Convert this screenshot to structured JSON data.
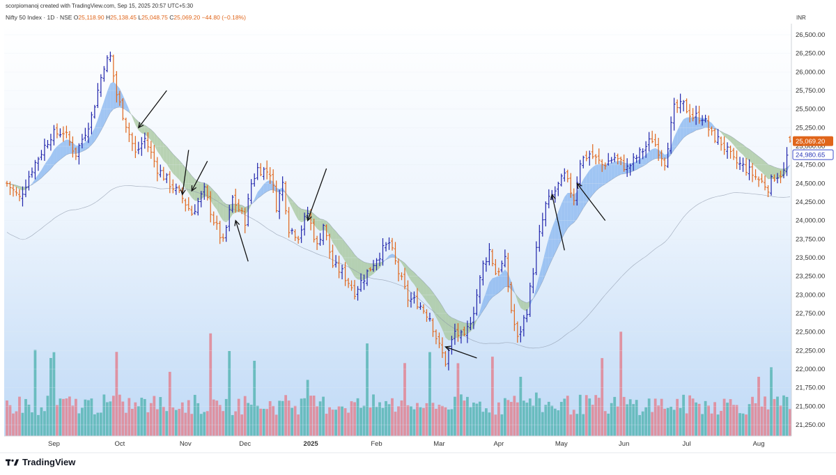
{
  "header": {
    "credit": "scorpiomanoj created with TradingView.com, Sep 15, 2025 20:57 UTC+5:30",
    "symbol": "Nifty 50 Index · 1D · NSE",
    "o_label": "O",
    "o_value": "25,118.90",
    "h_label": "H",
    "h_value": "25,138.45",
    "l_label": "L",
    "l_value": "25,048.75",
    "c_label": "C",
    "c_value": "25,069.20",
    "change": "−44.80 (−0.18%)"
  },
  "footer": {
    "brand": "TradingView"
  },
  "chart_data": {
    "type": "ohlc",
    "currency": "INR",
    "ylim": [
      21100,
      26650
    ],
    "y_ticks": [
      21250,
      21500,
      21750,
      22000,
      22250,
      22500,
      22750,
      23000,
      23250,
      23500,
      23750,
      24000,
      24250,
      24500,
      24750,
      25000,
      25250,
      25500,
      25750,
      26000,
      26250,
      26500
    ],
    "y_tick_labels": [
      "21,250.00",
      "21,500.00",
      "21,750.00",
      "22,000.00",
      "22,250.00",
      "22,500.00",
      "22,750.00",
      "23,000.00",
      "23,250.00",
      "23,500.00",
      "23,750.00",
      "24,000.00",
      "24,250.00",
      "24,500.00",
      "24,750.00",
      "25,000.00",
      "25,250.00",
      "25,500.00",
      "25,750.00",
      "26,000.00",
      "26,250.00",
      "26,500.00"
    ],
    "x_labels": [
      "Sep",
      "Oct",
      "Nov",
      "Dec",
      "2025",
      "Feb",
      "Mar",
      "Apr",
      "May",
      "Jun",
      "Jul",
      "Aug"
    ],
    "x_label_index": [
      15,
      36,
      57,
      76,
      97,
      118,
      138,
      157,
      177,
      197,
      217,
      240
    ],
    "last_price_label": "25,069.20",
    "ma_price_label": "24,980.65",
    "close_anchors": [
      [
        0,
        24500
      ],
      [
        4,
        24300
      ],
      [
        8,
        24700
      ],
      [
        14,
        25150
      ],
      [
        18,
        25200
      ],
      [
        22,
        24900
      ],
      [
        27,
        25400
      ],
      [
        31,
        26100
      ],
      [
        33,
        26200
      ],
      [
        35,
        25700
      ],
      [
        38,
        25300
      ],
      [
        41,
        24900
      ],
      [
        44,
        25100
      ],
      [
        48,
        24700
      ],
      [
        52,
        24500
      ],
      [
        56,
        24300
      ],
      [
        59,
        24100
      ],
      [
        63,
        24400
      ],
      [
        66,
        24000
      ],
      [
        69,
        23700
      ],
      [
        72,
        24300
      ],
      [
        76,
        24000
      ],
      [
        78,
        24500
      ],
      [
        80,
        24700
      ],
      [
        84,
        24650
      ],
      [
        86,
        24200
      ],
      [
        88,
        24500
      ],
      [
        90,
        23900
      ],
      [
        93,
        23800
      ],
      [
        96,
        24100
      ],
      [
        99,
        23650
      ],
      [
        101,
        23950
      ],
      [
        104,
        23400
      ],
      [
        107,
        23300
      ],
      [
        111,
        23050
      ],
      [
        115,
        23300
      ],
      [
        118,
        23500
      ],
      [
        122,
        23700
      ],
      [
        125,
        23300
      ],
      [
        128,
        22950
      ],
      [
        131,
        22900
      ],
      [
        135,
        22700
      ],
      [
        138,
        22300
      ],
      [
        140,
        22100
      ],
      [
        143,
        22500
      ],
      [
        146,
        22400
      ],
      [
        149,
        22800
      ],
      [
        152,
        23400
      ],
      [
        154,
        23600
      ],
      [
        156,
        23300
      ],
      [
        159,
        23450
      ],
      [
        161,
        22800
      ],
      [
        163,
        22400
      ],
      [
        166,
        22800
      ],
      [
        169,
        23600
      ],
      [
        172,
        24200
      ],
      [
        175,
        24400
      ],
      [
        178,
        24600
      ],
      [
        181,
        24300
      ],
      [
        183,
        24800
      ],
      [
        186,
        24900
      ],
      [
        190,
        24750
      ],
      [
        194,
        24850
      ],
      [
        198,
        24700
      ],
      [
        202,
        24900
      ],
      [
        206,
        25100
      ],
      [
        210,
        24800
      ],
      [
        213,
        25500
      ],
      [
        216,
        25550
      ],
      [
        219,
        25400
      ],
      [
        222,
        25400
      ],
      [
        225,
        25150
      ],
      [
        228,
        25050
      ],
      [
        232,
        24800
      ],
      [
        236,
        24700
      ],
      [
        240,
        24550
      ],
      [
        243,
        24450
      ],
      [
        245,
        24600
      ],
      [
        248,
        24650
      ],
      [
        250,
        25069
      ]
    ],
    "volume_profile": "pink/teal daily volume histogram at bottom",
    "trend_arrows": [
      {
        "from_index": 51,
        "from_price": 25750,
        "to_index": 42,
        "to_price": 25250
      },
      {
        "from_index": 58,
        "from_price": 24950,
        "to_index": 56,
        "to_price": 24350
      },
      {
        "from_index": 64,
        "from_price": 24800,
        "to_index": 59,
        "to_price": 24400
      },
      {
        "from_index": 77,
        "from_price": 23450,
        "to_index": 73,
        "to_price": 24000
      },
      {
        "from_index": 102,
        "from_price": 24700,
        "to_index": 96,
        "to_price": 24000
      },
      {
        "from_index": 150,
        "from_price": 22150,
        "to_index": 140,
        "to_price": 22300
      },
      {
        "from_index": 178,
        "from_price": 23600,
        "to_index": 174,
        "to_price": 24350
      },
      {
        "from_index": 191,
        "from_price": 24000,
        "to_index": 182,
        "to_price": 24500
      }
    ],
    "colors": {
      "up": "#1e22aa",
      "down": "#e0651a",
      "ribbon_bull": "#8bb8f0",
      "ribbon_bear": "#a9c8a0",
      "vol_up": "#5fb8b8",
      "vol_down": "#e08a98",
      "bg_top": "#ffffff",
      "bg_bottom": "#bfd9f6",
      "ma_line": "#8a96a8"
    }
  }
}
